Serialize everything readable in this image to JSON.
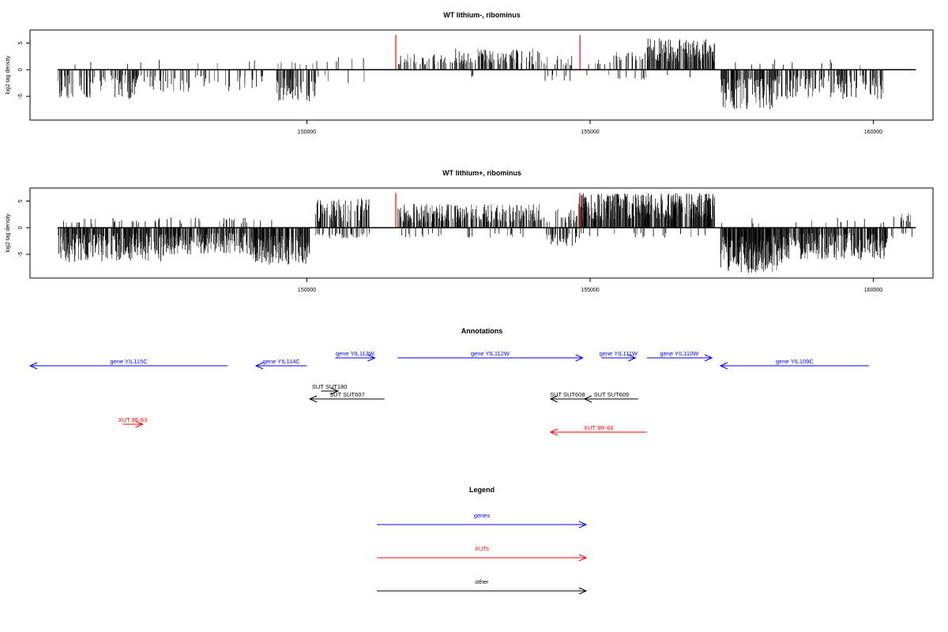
{
  "chart_data": [
    {
      "type": "bar",
      "title": "WT lithium-, ribominus",
      "ylabel": "log2 tag density",
      "xlabel": "",
      "xlim": [
        145000,
        160900
      ],
      "ylim": [
        -9,
        7
      ],
      "yticks": [
        -5,
        0,
        5
      ],
      "ytick_labels": [
        "-5",
        "0",
        "5"
      ],
      "xticks": [
        150000,
        155000,
        160000
      ],
      "xtick_labels": [
        "150000",
        "155000",
        "160000"
      ],
      "grid": false,
      "highlight_lines": {
        "color": "#ff0000",
        "x": [
          151570,
          154820
        ],
        "top": 6.5
      },
      "regions": [
        {
          "start": 145600,
          "end": 147000,
          "min": -5.5,
          "max": -1.0,
          "density": 0.9,
          "pos_prob": 0.04
        },
        {
          "start": 147000,
          "end": 149300,
          "min": -4.2,
          "max": -1.0,
          "density": 0.4,
          "pos_prob": 0.1
        },
        {
          "start": 149450,
          "end": 150150,
          "min": -6.0,
          "max": -1.5,
          "density": 1.4,
          "pos_prob": 0.1
        },
        {
          "start": 150150,
          "end": 151050,
          "min": -3.0,
          "max": 2.5,
          "density": 0.2,
          "pos_prob": 0.6
        },
        {
          "start": 151600,
          "end": 152600,
          "min": 1.0,
          "max": 3.0,
          "density": 0.6,
          "pos_prob": 0.95
        },
        {
          "start": 152600,
          "end": 154200,
          "min": 1.0,
          "max": 4.0,
          "density": 0.9,
          "pos_prob": 0.95
        },
        {
          "start": 154200,
          "end": 154700,
          "min": -2.5,
          "max": 3.5,
          "density": 0.6,
          "pos_prob": 0.6
        },
        {
          "start": 154900,
          "end": 155400,
          "min": -1.0,
          "max": 2.0,
          "density": 0.3,
          "pos_prob": 0.7
        },
        {
          "start": 155400,
          "end": 156000,
          "min": 1.5,
          "max": 3.5,
          "density": 0.7,
          "pos_prob": 0.9
        },
        {
          "start": 156000,
          "end": 157200,
          "min": 1.5,
          "max": 6.0,
          "density": 1.8,
          "pos_prob": 0.98
        },
        {
          "start": 157300,
          "end": 158300,
          "min": -7.5,
          "max": -1.5,
          "density": 1.6,
          "pos_prob": 0.02
        },
        {
          "start": 158300,
          "end": 160200,
          "min": -5.5,
          "max": -1.0,
          "density": 1.0,
          "pos_prob": 0.05
        }
      ]
    },
    {
      "type": "bar",
      "title": "WT lithium+, ribominus",
      "ylabel": "log2 tag density",
      "xlabel": "",
      "xlim": [
        145000,
        160900
      ],
      "ylim": [
        -9,
        7
      ],
      "yticks": [
        -5,
        0,
        5
      ],
      "ytick_labels": [
        "-5",
        "0",
        "5"
      ],
      "xticks": [
        150000,
        155000,
        160000
      ],
      "xtick_labels": [
        "150000",
        "155000",
        "160000"
      ],
      "grid": false,
      "highlight_lines": {
        "color": "#ff0000",
        "x": [
          151570,
          154820
        ],
        "top": 6.5
      },
      "regions": [
        {
          "start": 145600,
          "end": 147500,
          "min": -6.5,
          "max": -1.0,
          "density": 2.2,
          "pos_prob": 0.08
        },
        {
          "start": 147500,
          "end": 149000,
          "min": -5.0,
          "max": -1.0,
          "density": 2.0,
          "pos_prob": 0.1
        },
        {
          "start": 149000,
          "end": 150050,
          "min": -7.0,
          "max": -1.5,
          "density": 2.8,
          "pos_prob": 0.03
        },
        {
          "start": 150150,
          "end": 151100,
          "min": 1.0,
          "max": 5.5,
          "density": 1.8,
          "pos_prob": 0.75
        },
        {
          "start": 151600,
          "end": 154200,
          "min": 1.0,
          "max": 4.5,
          "density": 1.6,
          "pos_prob": 0.92
        },
        {
          "start": 154200,
          "end": 154800,
          "min": -3.5,
          "max": 3.5,
          "density": 1.4,
          "pos_prob": 0.5
        },
        {
          "start": 154800,
          "end": 157200,
          "min": 1.5,
          "max": 6.5,
          "density": 3.0,
          "pos_prob": 0.96
        },
        {
          "start": 157300,
          "end": 158400,
          "min": -8.5,
          "max": -1.5,
          "density": 3.0,
          "pos_prob": 0.02
        },
        {
          "start": 158400,
          "end": 160250,
          "min": -6.0,
          "max": -1.0,
          "density": 2.2,
          "pos_prob": 0.05
        },
        {
          "start": 160300,
          "end": 160700,
          "min": 1.0,
          "max": 3.0,
          "density": 0.6,
          "pos_prob": 0.8
        }
      ]
    }
  ],
  "annotations": {
    "title": "Annotations",
    "features": [
      {
        "label": "gene YIL115C",
        "kind": "gene",
        "strand": "-",
        "start": 145000,
        "end": 148600
      },
      {
        "label": "gene YIL114C",
        "kind": "gene",
        "strand": "-",
        "start": 149100,
        "end": 150000
      },
      {
        "label": "gene YIL113W",
        "kind": "gene",
        "strand": "+",
        "start": 150500,
        "end": 151200
      },
      {
        "label": "gene YIL112W",
        "kind": "gene",
        "strand": "+",
        "start": 151600,
        "end": 154870
      },
      {
        "label": "gene YIL111W",
        "kind": "gene",
        "strand": "+",
        "start": 155200,
        "end": 155800
      },
      {
        "label": "gene YIL110W",
        "kind": "gene",
        "strand": "+",
        "start": 156000,
        "end": 157150
      },
      {
        "label": "gene YIL109C",
        "kind": "gene",
        "strand": "-",
        "start": 157300,
        "end": 160150
      },
      {
        "label": "SUT SUT180",
        "kind": "other",
        "strand": "+",
        "start": 150250,
        "end": 150550
      },
      {
        "label": "SUT SUT607",
        "kind": "other",
        "strand": "-",
        "start": 150050,
        "end": 151370
      },
      {
        "label": "SUT SUT608",
        "kind": "other",
        "strand": "-",
        "start": 154300,
        "end": 154900
      },
      {
        "label": "SUT SUT609",
        "kind": "other",
        "strand": "-",
        "start": 154900,
        "end": 155850
      },
      {
        "label": "XUT 9F-63",
        "kind": "XUT",
        "strand": "+",
        "start": 146750,
        "end": 147100
      },
      {
        "label": "XUT 9R-63",
        "kind": "XUT",
        "strand": "-",
        "start": 154300,
        "end": 156000
      }
    ]
  },
  "legend": {
    "title": "Legend",
    "items": [
      {
        "label": "genes",
        "color": "#0000ff"
      },
      {
        "label": "XUTs",
        "color": "#ff0000"
      },
      {
        "label": "other",
        "color": "#000000"
      }
    ]
  }
}
